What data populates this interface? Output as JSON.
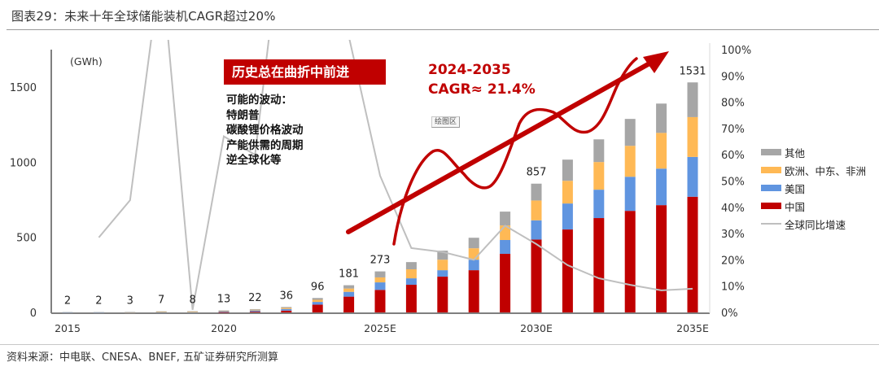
{
  "title": "图表29：未来十年全球储能装机CAGR超过20%",
  "source": "资料来源：中电联、CNESA、BNEF, 五矿证券研究所测算",
  "annotations": {
    "headline": "历史总在曲折中前进",
    "fluctuations": [
      "可能的波动：",
      "特朗普",
      "碳酸锂价格波动",
      "产能供需的周期",
      "逆全球化等"
    ],
    "cagr_line1": "2024-2035",
    "cagr_line2": "CAGR≈ 21.4%",
    "plot_area_tag": "绘图区"
  },
  "colors": {
    "china": "#c00000",
    "usa": "#6095e0",
    "emea": "#ffb955",
    "other": "#a6a6a6",
    "growth_line": "#bfbfbf",
    "accent": "#c00000"
  },
  "chart_data": {
    "type": "bar",
    "stacked": true,
    "title": "未来十年全球储能装机CAGR超过20%",
    "ylabel": "(GWh)",
    "ylim": [
      0,
      1750
    ],
    "yticks": [
      0,
      500,
      1000,
      1500
    ],
    "y2lim": [
      0,
      1.0
    ],
    "y2ticks": [
      "0%",
      "10%",
      "20%",
      "30%",
      "40%",
      "50%",
      "60%",
      "70%",
      "80%",
      "90%",
      "100%"
    ],
    "categories": [
      "2015",
      "2016",
      "2017",
      "2018",
      "2019",
      "2020",
      "2021",
      "2022",
      "2023",
      "2024",
      "2025E",
      "2026E",
      "2027E",
      "2028E",
      "2029E",
      "2030E",
      "2031E",
      "2032E",
      "2033E",
      "2034E",
      "2035E"
    ],
    "xtick_labels": {
      "2015": "2015",
      "2020": "2020",
      "2025E": "2025E",
      "2030E": "2030E",
      "2035E": "2035E"
    },
    "totals_labels": {
      "2015": "2",
      "2016": "2",
      "2017": "3",
      "2018": "7",
      "2019": "8",
      "2020": "13",
      "2021": "22",
      "2022": "36",
      "2023": "96",
      "2024": "181",
      "2025E": "273",
      "2030E": "857",
      "2035E": "1531"
    },
    "series": [
      {
        "name": "中国",
        "key": "china",
        "values": [
          0,
          0,
          0,
          0,
          0,
          2,
          5,
          12,
          52,
          105,
          150,
          184,
          238,
          281,
          390,
          485,
          552,
          628,
          676,
          714,
          770
        ]
      },
      {
        "name": "美国",
        "key": "usa",
        "values": [
          1,
          1,
          1,
          2,
          2,
          6,
          8,
          11,
          18,
          32,
          50,
          43,
          43,
          70,
          92,
          128,
          173,
          189,
          227,
          243,
          265
        ]
      },
      {
        "name": "欧洲、中东、非洲",
        "key": "emea",
        "values": [
          0,
          0,
          1,
          2,
          2,
          3,
          5,
          7,
          14,
          22,
          33,
          60,
          70,
          76,
          97,
          132,
          151,
          184,
          206,
          238,
          265
        ]
      },
      {
        "name": "其他",
        "key": "other",
        "values": [
          1,
          1,
          1,
          3,
          4,
          2,
          4,
          6,
          12,
          22,
          40,
          48,
          60,
          70,
          92,
          112,
          141,
          151,
          179,
          195,
          231
        ]
      }
    ],
    "line_series": {
      "name": "全球同比增速",
      "axis": "right",
      "values": [
        null,
        0.285,
        0.427,
        1.33,
        0.01,
        0.67,
        0.6,
        1.6,
        1.6,
        1.05,
        0.52,
        0.245,
        0.23,
        0.2,
        0.33,
        0.26,
        0.18,
        0.13,
        0.105,
        0.084,
        0.09
      ]
    },
    "legend": [
      "其他",
      "欧洲、中东、非洲",
      "美国",
      "中国",
      "全球同比增速"
    ],
    "legend_position": "right"
  }
}
